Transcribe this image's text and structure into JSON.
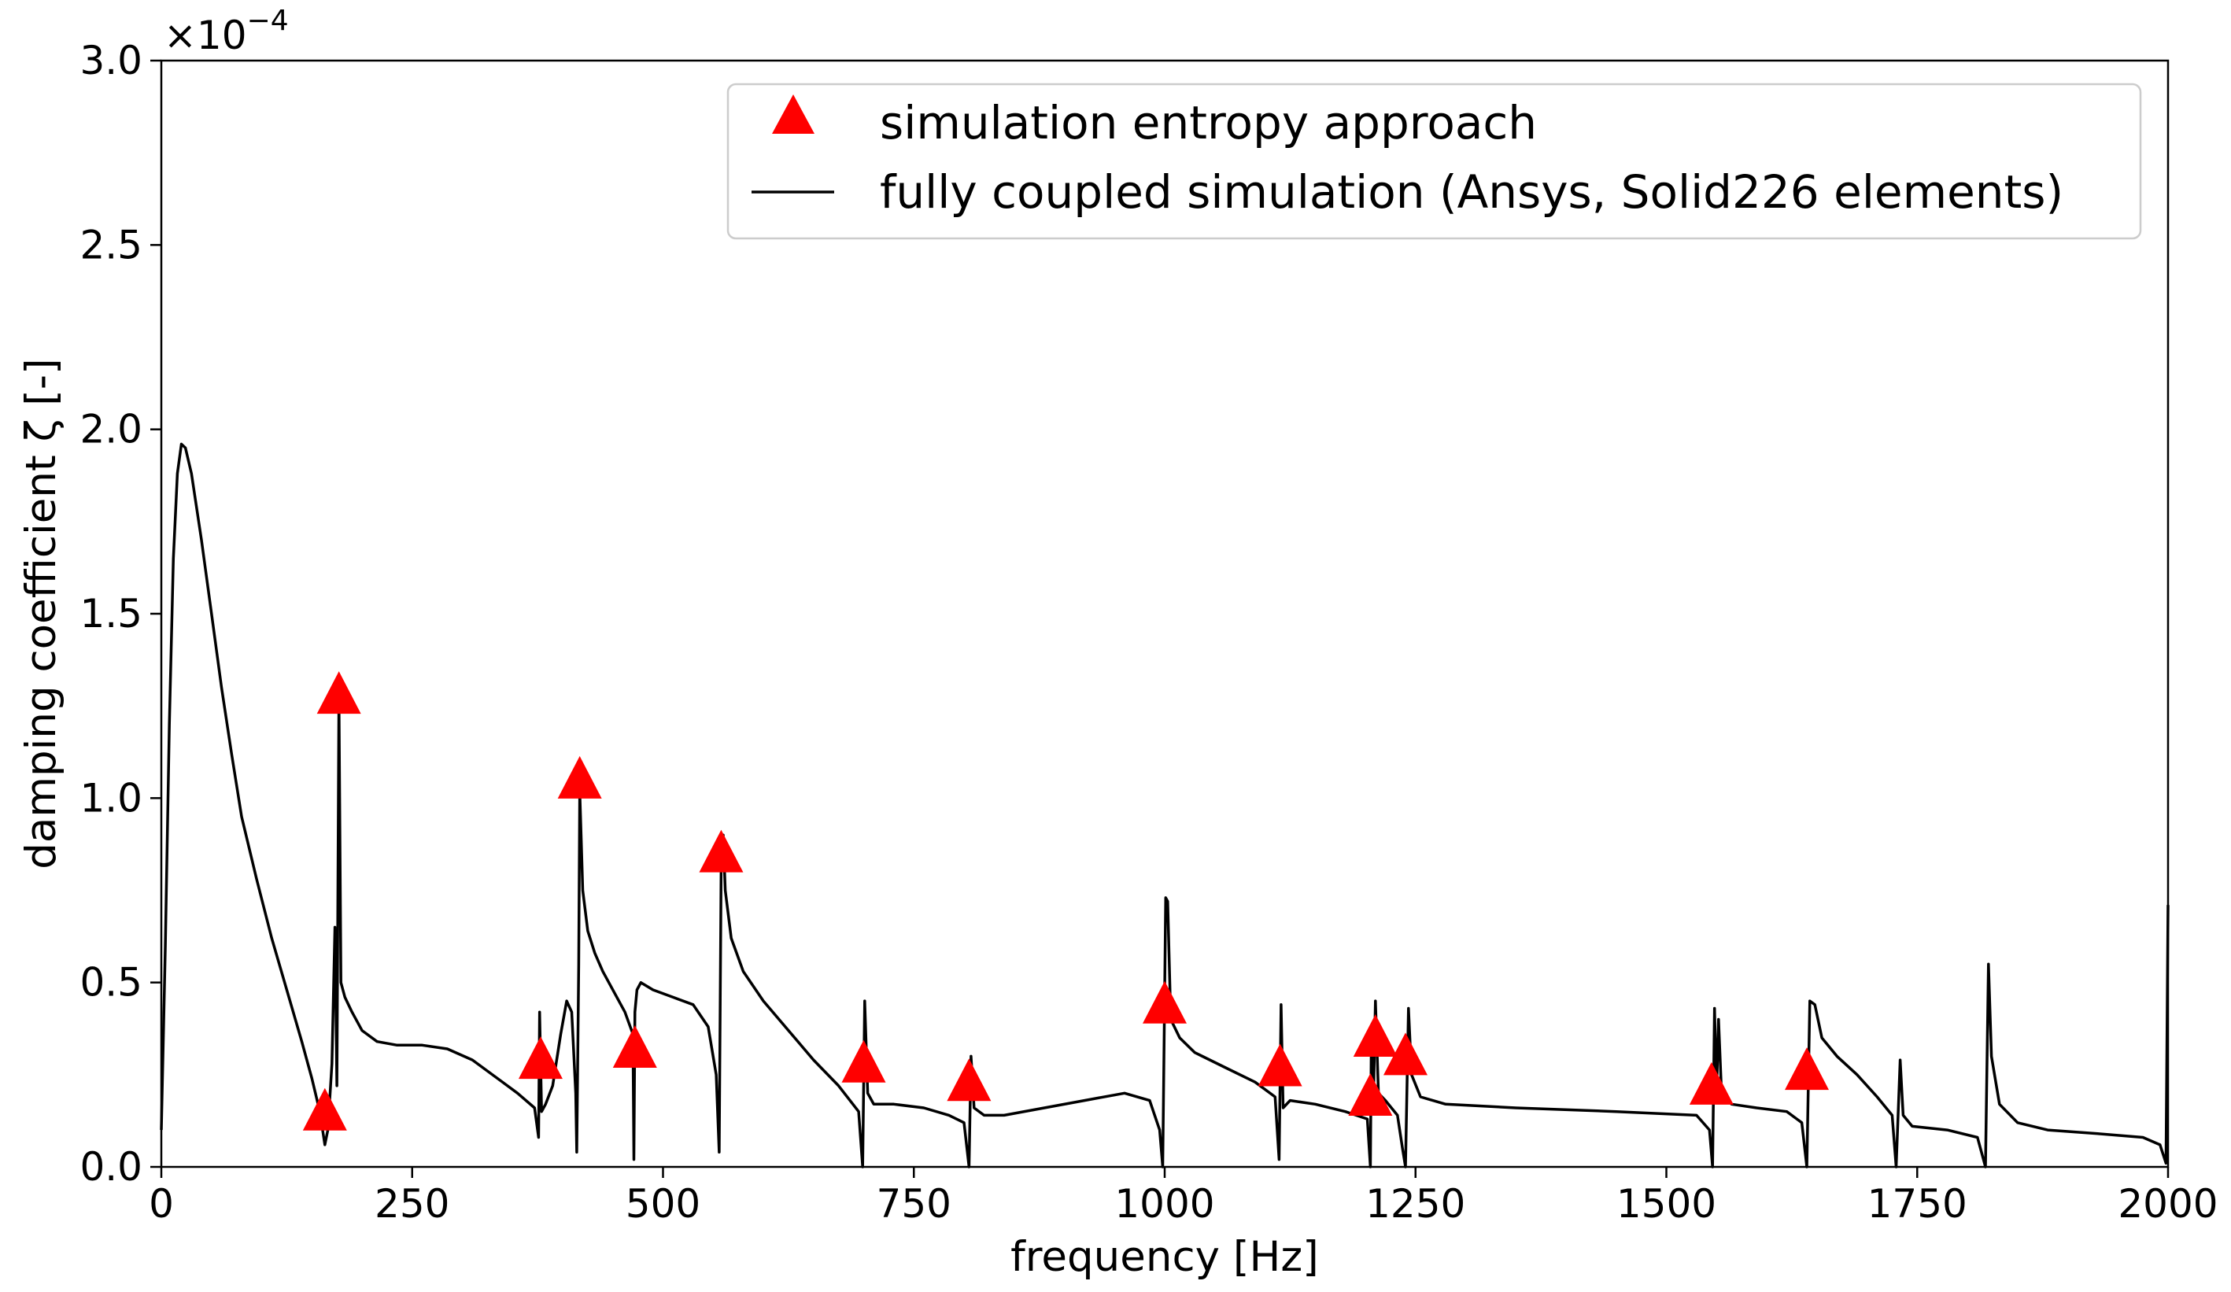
{
  "chart_data": {
    "type": "line",
    "title": "",
    "xlabel": "frequency [Hz]",
    "ylabel": "damping coefficient ζ [-]",
    "y_scale_label": "×10",
    "y_scale_exponent": "−4",
    "xlim": [
      0,
      2000
    ],
    "ylim": [
      0,
      3.0
    ],
    "x_ticks": [
      0,
      250,
      500,
      750,
      1000,
      1250,
      1500,
      1750,
      2000
    ],
    "x_tick_labels": [
      "0",
      "250",
      "500",
      "750",
      "1000",
      "1250",
      "1500",
      "1750",
      "2000"
    ],
    "y_ticks": [
      0,
      0.5,
      1.0,
      1.5,
      2.0,
      2.5,
      3.0
    ],
    "y_tick_labels": [
      "0.0",
      "0.5",
      "1.0",
      "1.5",
      "2.0",
      "2.5",
      "3.0"
    ],
    "legend_position": "top-right",
    "series": [
      {
        "name": "simulation entropy approach",
        "kind": "scatter",
        "marker": "triangle",
        "color": "#ff0000",
        "points": [
          [
            163,
            0.15
          ],
          [
            177,
            1.28
          ],
          [
            378,
            0.29
          ],
          [
            417,
            1.05
          ],
          [
            472,
            0.32
          ],
          [
            558,
            0.85
          ],
          [
            700,
            0.28
          ],
          [
            805,
            0.23
          ],
          [
            1000,
            0.44
          ],
          [
            1115,
            0.27
          ],
          [
            1205,
            0.19
          ],
          [
            1210,
            0.35
          ],
          [
            1240,
            0.3
          ],
          [
            1545,
            0.22
          ],
          [
            1640,
            0.26
          ]
        ]
      },
      {
        "name": "fully coupled simulation (Ansys, Solid226 elements)",
        "kind": "line",
        "color": "#000000",
        "points": [
          [
            0,
            0.1
          ],
          [
            4,
            0.6
          ],
          [
            8,
            1.2
          ],
          [
            12,
            1.65
          ],
          [
            16,
            1.88
          ],
          [
            20,
            1.96
          ],
          [
            24,
            1.95
          ],
          [
            30,
            1.88
          ],
          [
            40,
            1.7
          ],
          [
            50,
            1.5
          ],
          [
            60,
            1.3
          ],
          [
            70,
            1.12
          ],
          [
            80,
            0.95
          ],
          [
            95,
            0.78
          ],
          [
            110,
            0.62
          ],
          [
            125,
            0.48
          ],
          [
            140,
            0.34
          ],
          [
            150,
            0.24
          ],
          [
            158,
            0.15
          ],
          [
            163,
            0.06
          ],
          [
            166,
            0.1
          ],
          [
            170,
            0.28
          ],
          [
            173,
            0.65
          ],
          [
            175,
            0.22
          ],
          [
            177,
            1.28
          ],
          [
            179,
            0.5
          ],
          [
            183,
            0.46
          ],
          [
            190,
            0.42
          ],
          [
            200,
            0.37
          ],
          [
            215,
            0.34
          ],
          [
            235,
            0.33
          ],
          [
            260,
            0.33
          ],
          [
            285,
            0.32
          ],
          [
            310,
            0.29
          ],
          [
            335,
            0.24
          ],
          [
            355,
            0.2
          ],
          [
            372,
            0.16
          ],
          [
            376,
            0.08
          ],
          [
            377,
            0.42
          ],
          [
            379,
            0.15
          ],
          [
            383,
            0.17
          ],
          [
            390,
            0.22
          ],
          [
            398,
            0.36
          ],
          [
            404,
            0.45
          ],
          [
            409,
            0.42
          ],
          [
            413,
            0.2
          ],
          [
            414,
            0.04
          ],
          [
            416,
            0.55
          ],
          [
            417,
            1.02
          ],
          [
            420,
            0.75
          ],
          [
            425,
            0.64
          ],
          [
            432,
            0.58
          ],
          [
            440,
            0.53
          ],
          [
            452,
            0.47
          ],
          [
            462,
            0.42
          ],
          [
            470,
            0.36
          ],
          [
            471,
            0.02
          ],
          [
            472,
            0.42
          ],
          [
            474,
            0.48
          ],
          [
            478,
            0.5
          ],
          [
            490,
            0.48
          ],
          [
            510,
            0.46
          ],
          [
            530,
            0.44
          ],
          [
            545,
            0.38
          ],
          [
            553,
            0.25
          ],
          [
            556,
            0.04
          ],
          [
            558,
            0.85
          ],
          [
            560,
            0.9
          ],
          [
            562,
            0.75
          ],
          [
            568,
            0.62
          ],
          [
            580,
            0.53
          ],
          [
            600,
            0.45
          ],
          [
            625,
            0.37
          ],
          [
            650,
            0.29
          ],
          [
            675,
            0.22
          ],
          [
            695,
            0.15
          ],
          [
            699,
            0.0
          ],
          [
            701,
            0.45
          ],
          [
            704,
            0.2
          ],
          [
            710,
            0.17
          ],
          [
            730,
            0.17
          ],
          [
            760,
            0.16
          ],
          [
            785,
            0.14
          ],
          [
            800,
            0.12
          ],
          [
            805,
            0.0
          ],
          [
            807,
            0.3
          ],
          [
            810,
            0.16
          ],
          [
            820,
            0.14
          ],
          [
            840,
            0.14
          ],
          [
            880,
            0.16
          ],
          [
            920,
            0.18
          ],
          [
            960,
            0.2
          ],
          [
            985,
            0.18
          ],
          [
            995,
            0.1
          ],
          [
            998,
            0.0
          ],
          [
            1001,
            0.73
          ],
          [
            1003,
            0.72
          ],
          [
            1006,
            0.4
          ],
          [
            1015,
            0.35
          ],
          [
            1030,
            0.31
          ],
          [
            1060,
            0.27
          ],
          [
            1090,
            0.23
          ],
          [
            1110,
            0.19
          ],
          [
            1114,
            0.02
          ],
          [
            1116,
            0.44
          ],
          [
            1118,
            0.16
          ],
          [
            1125,
            0.18
          ],
          [
            1150,
            0.17
          ],
          [
            1180,
            0.15
          ],
          [
            1202,
            0.13
          ],
          [
            1205,
            0.0
          ],
          [
            1206,
            0.35
          ],
          [
            1208,
            0.17
          ],
          [
            1210,
            0.45
          ],
          [
            1213,
            0.2
          ],
          [
            1220,
            0.18
          ],
          [
            1232,
            0.14
          ],
          [
            1237,
            0.05
          ],
          [
            1240,
            0.0
          ],
          [
            1243,
            0.43
          ],
          [
            1246,
            0.25
          ],
          [
            1255,
            0.19
          ],
          [
            1280,
            0.17
          ],
          [
            1350,
            0.16
          ],
          [
            1450,
            0.15
          ],
          [
            1530,
            0.14
          ],
          [
            1543,
            0.1
          ],
          [
            1546,
            0.0
          ],
          [
            1548,
            0.43
          ],
          [
            1550,
            0.2
          ],
          [
            1552,
            0.4
          ],
          [
            1555,
            0.2
          ],
          [
            1565,
            0.17
          ],
          [
            1590,
            0.16
          ],
          [
            1620,
            0.15
          ],
          [
            1635,
            0.12
          ],
          [
            1640,
            0.0
          ],
          [
            1643,
            0.45
          ],
          [
            1648,
            0.44
          ],
          [
            1655,
            0.35
          ],
          [
            1670,
            0.3
          ],
          [
            1690,
            0.25
          ],
          [
            1710,
            0.19
          ],
          [
            1725,
            0.14
          ],
          [
            1729,
            0.0
          ],
          [
            1733,
            0.29
          ],
          [
            1736,
            0.14
          ],
          [
            1745,
            0.11
          ],
          [
            1780,
            0.1
          ],
          [
            1810,
            0.08
          ],
          [
            1818,
            0.0
          ],
          [
            1821,
            0.55
          ],
          [
            1824,
            0.3
          ],
          [
            1832,
            0.17
          ],
          [
            1850,
            0.12
          ],
          [
            1880,
            0.1
          ],
          [
            1930,
            0.09
          ],
          [
            1975,
            0.08
          ],
          [
            1992,
            0.06
          ],
          [
            1998,
            0.01
          ],
          [
            2000,
            0.71
          ]
        ]
      }
    ]
  }
}
